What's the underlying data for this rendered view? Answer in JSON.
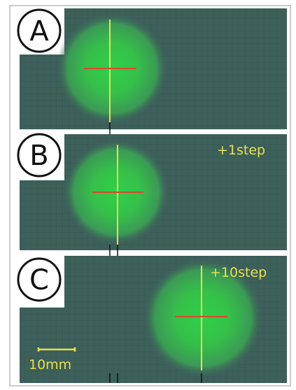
{
  "panels": [
    {
      "label": "A"
    },
    {
      "label": "B",
      "annotation": "+1step"
    },
    {
      "label": "C",
      "annotation": "+10step",
      "scale_bar": "10mm"
    }
  ]
}
